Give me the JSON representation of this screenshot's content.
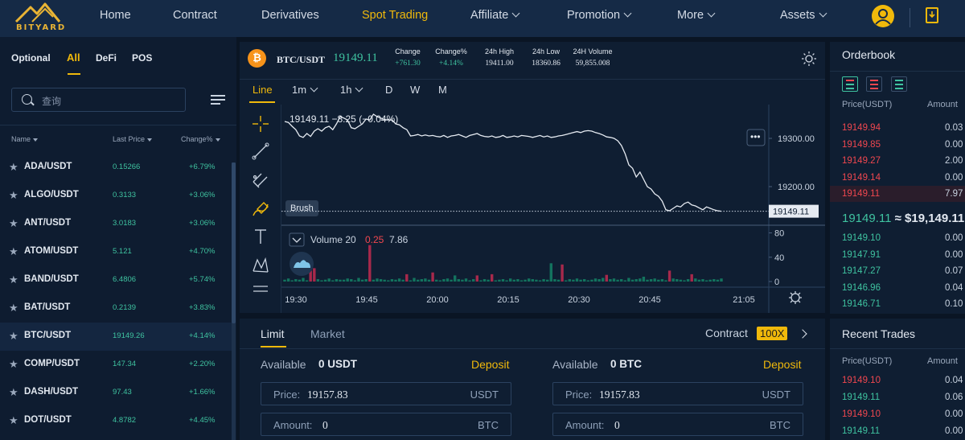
{
  "nav": {
    "logo_text": "BITYARD",
    "items": [
      "Home",
      "Contract",
      "Derivatives",
      "Spot Trading",
      "Affiliate",
      "Promotion",
      "More"
    ],
    "assets": "Assets",
    "active_index": 3
  },
  "market": {
    "tabs": [
      "Optional",
      "All",
      "DeFi",
      "POS"
    ],
    "active_tab": "All",
    "search_placeholder": "查询",
    "columns": [
      "Name",
      "Last Price",
      "Change%"
    ],
    "rows": [
      {
        "pair": "ADA/USDT",
        "price": "0.15266",
        "change": "+6.79%"
      },
      {
        "pair": "ALGO/USDT",
        "price": "0.3133",
        "change": "+3.06%"
      },
      {
        "pair": "ANT/USDT",
        "price": "3.0183",
        "change": "+3.06%"
      },
      {
        "pair": "ATOM/USDT",
        "price": "5.121",
        "change": "+4.70%"
      },
      {
        "pair": "BAND/USDT",
        "price": "6.4806",
        "change": "+5.74%"
      },
      {
        "pair": "BAT/USDT",
        "price": "0.2139",
        "change": "+3.83%"
      },
      {
        "pair": "BTC/USDT",
        "price": "19149.26",
        "change": "+4.14%"
      },
      {
        "pair": "COMP/USDT",
        "price": "147.34",
        "change": "+2.20%"
      },
      {
        "pair": "DASH/USDT",
        "price": "97.43",
        "change": "+1.66%"
      },
      {
        "pair": "DOT/USDT",
        "price": "4.8782",
        "change": "+4.45%"
      }
    ],
    "selected_pair": "BTC/USDT"
  },
  "ticker": {
    "pair": "BTC/USDT",
    "price": "19149.11",
    "stats": [
      {
        "label": "Change",
        "value": "+761.30",
        "up": true
      },
      {
        "label": "Change%",
        "value": "+4.14%",
        "up": true
      },
      {
        "label": "24h High",
        "value": "19411.00",
        "up": false
      },
      {
        "label": "24h Low",
        "value": "18360.86",
        "up": false
      },
      {
        "label": "24H Volume",
        "value": "59,855.008",
        "up": false
      }
    ]
  },
  "chart_toolbar": {
    "timeframes": [
      "Line",
      "1m",
      "1h",
      "D",
      "W",
      "M"
    ],
    "active": "Line",
    "tooltip": "Brush",
    "tools": [
      "crosshair-icon",
      "line-tool-icon",
      "fork-tool-icon",
      "brush-icon",
      "text-tool-icon",
      "pattern-tool-icon",
      "measure-tool-icon"
    ]
  },
  "chart_data": {
    "type": "line",
    "title": "",
    "legend_text": "19149.11 −8.25 (−0.04%)",
    "volume_legend": {
      "name": "Volume 20",
      "v1": "0.25",
      "v2": "7.86"
    },
    "x_ticks": [
      "19:30",
      "19:45",
      "20:00",
      "20:15",
      "20:30",
      "20:45",
      "21:05"
    ],
    "price_ticks": [
      "19300.00",
      "19200.00"
    ],
    "volume_ticks": [
      "80",
      "40",
      "0"
    ],
    "last_price_label": "19149.11",
    "price_range": [
      19120,
      19360
    ],
    "volume_range": [
      0,
      90
    ],
    "series": [
      {
        "x": [
          0,
          1,
          2,
          3,
          4,
          5,
          6,
          7,
          8,
          9,
          10,
          11,
          12,
          13,
          14,
          15,
          16,
          17,
          18,
          19,
          20,
          21,
          22,
          23,
          24,
          25,
          26,
          27,
          28,
          29,
          30,
          31,
          32,
          33,
          34,
          35,
          36,
          37,
          38,
          39,
          40,
          41,
          42,
          43,
          44,
          45,
          46,
          47,
          48,
          49,
          50,
          51,
          52,
          53,
          54,
          55,
          56,
          57,
          58,
          59,
          60,
          61,
          62,
          63,
          64,
          65,
          66,
          67,
          68,
          69,
          70,
          71,
          72,
          73,
          74,
          75,
          76,
          77,
          78,
          79,
          80,
          81,
          82,
          83,
          84,
          85,
          86,
          87,
          88,
          89,
          90,
          91,
          92,
          93,
          94,
          95,
          96,
          97,
          98,
          99,
          100,
          101,
          102,
          103,
          104,
          105,
          106,
          107,
          108,
          109,
          110,
          111,
          112,
          113,
          114,
          115,
          116,
          117,
          118
        ],
        "y": [
          19335,
          19333,
          19325,
          19318,
          19305,
          19302,
          19310,
          19304,
          19315,
          19320,
          19315,
          19322,
          19325,
          19318,
          19330,
          19345,
          19342,
          19338,
          19322,
          19320,
          19325,
          19330,
          19340,
          19338,
          19350,
          19345,
          19342,
          19339,
          19338,
          19338,
          19330,
          19328,
          19322,
          19318,
          19305,
          19306,
          19308,
          19305,
          19307,
          19305,
          19306,
          19304,
          19303,
          19306,
          19302,
          19305,
          19306,
          19308,
          19305,
          19302,
          19306,
          19308,
          19310,
          19306,
          19304,
          19303,
          19305,
          19302,
          19303,
          19306,
          19302,
          19303,
          19305,
          19303,
          19306,
          19305,
          19304,
          19302,
          19304,
          19306,
          19303,
          19305,
          19302,
          19303,
          19305,
          19306,
          19308,
          19310,
          19312,
          19314,
          19312,
          19315,
          19316,
          19315,
          19312,
          19310,
          19307,
          19303,
          19302,
          19300,
          19295,
          19285,
          19268,
          19245,
          19238,
          19220,
          19230,
          19215,
          19200,
          19195,
          19185,
          19180,
          19170,
          19152,
          19150,
          19155,
          19160,
          19158,
          19165,
          19168,
          19162,
          19160,
          19156,
          19152,
          19158,
          19155,
          19152,
          19150,
          19149
        ],
        "volume": [
          3,
          5,
          2,
          4,
          3,
          6,
          2,
          5,
          3,
          4,
          2,
          3,
          5,
          2,
          4,
          3,
          3,
          5,
          4,
          2,
          6,
          3,
          4,
          2,
          3,
          5,
          4,
          3,
          2,
          4,
          3,
          5,
          3,
          4,
          2,
          6,
          3,
          4,
          5,
          3,
          4,
          3,
          2,
          4,
          5,
          3,
          10,
          4,
          3,
          5,
          2,
          4,
          3,
          2,
          4,
          3,
          5,
          2,
          3,
          4,
          2,
          5,
          3,
          4,
          2,
          3,
          5,
          4,
          3,
          2,
          4,
          3,
          30,
          4,
          3,
          5,
          2,
          4,
          3,
          5,
          3,
          4,
          2,
          3,
          5,
          4,
          6,
          3,
          4,
          5,
          3,
          4,
          2,
          6,
          3,
          4,
          5,
          8,
          3,
          4,
          5,
          3,
          4,
          2,
          3,
          5,
          4,
          3,
          2,
          4,
          3,
          5,
          3,
          4,
          2,
          3,
          4,
          3,
          5
        ],
        "spikes": [
          {
            "i": 7,
            "v": 18
          },
          {
            "i": 8,
            "v": 22
          },
          {
            "i": 23,
            "v": 60
          },
          {
            "i": 33,
            "v": 12
          },
          {
            "i": 40,
            "v": 15
          },
          {
            "i": 52,
            "v": 10
          },
          {
            "i": 56,
            "v": 12
          },
          {
            "i": 75,
            "v": 28
          },
          {
            "i": 87,
            "v": 11
          },
          {
            "i": 104,
            "v": 18
          },
          {
            "i": 110,
            "v": 12
          }
        ]
      }
    ]
  },
  "order": {
    "tabs": [
      "Limit",
      "Market"
    ],
    "active_tab": "Limit",
    "contract_label": "Contract",
    "leverage": "100X",
    "buy": {
      "available_label": "Available",
      "available_value": "0 USDT",
      "deposit": "Deposit",
      "price_label": "Price:",
      "price_value": "19157.83",
      "price_unit": "USDT",
      "amount_label": "Amount:",
      "amount_value": "0",
      "amount_unit": "BTC"
    },
    "sell": {
      "available_label": "Available",
      "available_value": "0 BTC",
      "deposit": "Deposit",
      "price_label": "Price:",
      "price_value": "19157.83",
      "price_unit": "USDT",
      "amount_label": "Amount:",
      "amount_value": "0",
      "amount_unit": "BTC"
    }
  },
  "orderbook": {
    "title": "Orderbook",
    "col_price": "Price(USDT)",
    "col_amount": "Amount",
    "asks": [
      {
        "price": "19149.94",
        "amount": "0.03"
      },
      {
        "price": "19149.85",
        "amount": "0.00"
      },
      {
        "price": "19149.27",
        "amount": "2.00"
      },
      {
        "price": "19149.14",
        "amount": "0.00"
      },
      {
        "price": "19149.11",
        "amount": "7.97"
      }
    ],
    "last_price": "19149.11",
    "last_usd": "≈ $19,149.11",
    "bids": [
      {
        "price": "19149.10",
        "amount": "0.00"
      },
      {
        "price": "19147.91",
        "amount": "0.00"
      },
      {
        "price": "19147.27",
        "amount": "0.07"
      },
      {
        "price": "19146.96",
        "amount": "0.04"
      },
      {
        "price": "19146.71",
        "amount": "0.10"
      }
    ]
  },
  "recent_trades": {
    "title": "Recent Trades",
    "col_price": "Price(USDT)",
    "col_amount": "Amount",
    "rows": [
      {
        "price": "19149.10",
        "amount": "0.04",
        "side": "sell"
      },
      {
        "price": "19149.11",
        "amount": "0.06",
        "side": "buy"
      },
      {
        "price": "19149.10",
        "amount": "0.00",
        "side": "sell"
      },
      {
        "price": "19149.11",
        "amount": "0.00",
        "side": "buy"
      }
    ]
  },
  "colors": {
    "accent": "#f0b90b",
    "up": "#3fc3a0",
    "down": "#f0474f",
    "bg": "#0a1524"
  }
}
